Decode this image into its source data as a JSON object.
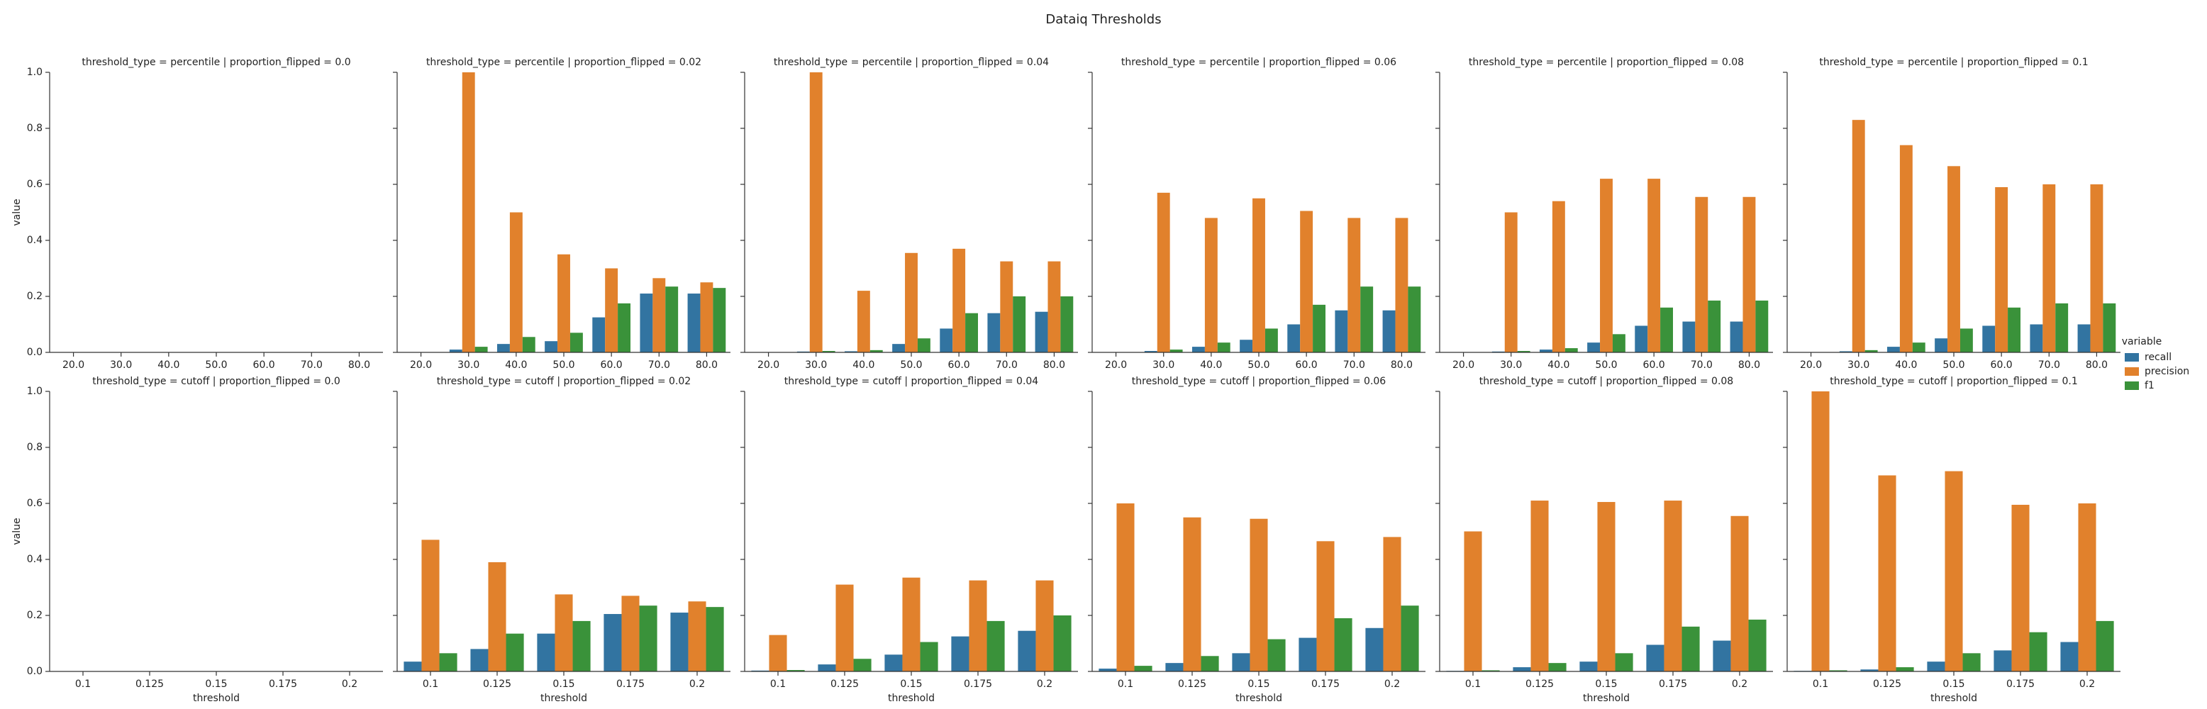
{
  "title": "Dataiq Thresholds",
  "legend_title": "variable",
  "ylim": [
    0,
    1
  ],
  "yticks": [
    {
      "value": 0,
      "label": "0.0"
    },
    0.2,
    0.4,
    0.6,
    0.8,
    {
      "value": 1,
      "label": "1.0"
    }
  ],
  "chart_data": [
    {
      "type": "bar",
      "title": "threshold_type = percentile | proportion_flipped = 0.0",
      "ylabel": "value",
      "categories": [
        "20.0",
        "30.0",
        "40.0",
        "50.0",
        "60.0",
        "70.0",
        "80.0"
      ],
      "series": [
        {
          "name": "recall",
          "color": "#3274a1",
          "values": [
            0,
            0,
            0,
            0,
            0,
            0,
            0
          ]
        },
        {
          "name": "precision",
          "color": "#e1812c",
          "values": [
            0,
            0,
            0,
            0,
            0,
            0,
            0
          ]
        },
        {
          "name": "f1",
          "color": "#3a923a",
          "values": [
            0,
            0,
            0,
            0,
            0,
            0,
            0
          ]
        }
      ]
    },
    {
      "type": "bar",
      "title": "threshold_type = percentile | proportion_flipped = 0.02",
      "categories": [
        "20.0",
        "30.0",
        "40.0",
        "50.0",
        "60.0",
        "70.0",
        "80.0"
      ],
      "series": [
        {
          "name": "recall",
          "color": "#3274a1",
          "values": [
            0,
            0.01,
            0.03,
            0.04,
            0.125,
            0.21,
            0.21
          ]
        },
        {
          "name": "precision",
          "color": "#e1812c",
          "values": [
            0,
            1.0,
            0.5,
            0.35,
            0.3,
            0.265,
            0.25
          ]
        },
        {
          "name": "f1",
          "color": "#3a923a",
          "values": [
            0,
            0.02,
            0.055,
            0.07,
            0.175,
            0.235,
            0.23
          ]
        }
      ]
    },
    {
      "type": "bar",
      "title": "threshold_type = percentile | proportion_flipped = 0.04",
      "categories": [
        "20.0",
        "30.0",
        "40.0",
        "50.0",
        "60.0",
        "70.0",
        "80.0"
      ],
      "series": [
        {
          "name": "recall",
          "color": "#3274a1",
          "values": [
            0,
            0.003,
            0.004,
            0.03,
            0.085,
            0.14,
            0.145
          ]
        },
        {
          "name": "precision",
          "color": "#e1812c",
          "values": [
            0,
            1.0,
            0.22,
            0.355,
            0.37,
            0.325,
            0.325
          ]
        },
        {
          "name": "f1",
          "color": "#3a923a",
          "values": [
            0,
            0.005,
            0.008,
            0.05,
            0.14,
            0.2,
            0.2
          ]
        }
      ]
    },
    {
      "type": "bar",
      "title": "threshold_type = percentile | proportion_flipped = 0.06",
      "categories": [
        "20.0",
        "30.0",
        "40.0",
        "50.0",
        "60.0",
        "70.0",
        "80.0"
      ],
      "series": [
        {
          "name": "recall",
          "color": "#3274a1",
          "values": [
            0,
            0.005,
            0.02,
            0.045,
            0.1,
            0.15,
            0.15
          ]
        },
        {
          "name": "precision",
          "color": "#e1812c",
          "values": [
            0,
            0.57,
            0.48,
            0.55,
            0.505,
            0.48,
            0.48
          ]
        },
        {
          "name": "f1",
          "color": "#3a923a",
          "values": [
            0,
            0.01,
            0.035,
            0.085,
            0.17,
            0.235,
            0.235
          ]
        }
      ]
    },
    {
      "type": "bar",
      "title": "threshold_type = percentile | proportion_flipped = 0.08",
      "categories": [
        "20.0",
        "30.0",
        "40.0",
        "50.0",
        "60.0",
        "70.0",
        "80.0"
      ],
      "series": [
        {
          "name": "recall",
          "color": "#3274a1",
          "values": [
            0,
            0.003,
            0.01,
            0.035,
            0.095,
            0.11,
            0.11
          ]
        },
        {
          "name": "precision",
          "color": "#e1812c",
          "values": [
            0,
            0.5,
            0.54,
            0.62,
            0.62,
            0.555,
            0.555
          ]
        },
        {
          "name": "f1",
          "color": "#3a923a",
          "values": [
            0,
            0.005,
            0.015,
            0.065,
            0.16,
            0.185,
            0.185
          ]
        }
      ]
    },
    {
      "type": "bar",
      "title": "threshold_type = percentile | proportion_flipped = 0.1",
      "categories": [
        "20.0",
        "30.0",
        "40.0",
        "50.0",
        "60.0",
        "70.0",
        "80.0"
      ],
      "series": [
        {
          "name": "recall",
          "color": "#3274a1",
          "values": [
            0,
            0.004,
            0.02,
            0.05,
            0.095,
            0.1,
            0.1
          ]
        },
        {
          "name": "precision",
          "color": "#e1812c",
          "values": [
            0,
            0.83,
            0.74,
            0.665,
            0.59,
            0.6,
            0.6
          ]
        },
        {
          "name": "f1",
          "color": "#3a923a",
          "values": [
            0,
            0.008,
            0.035,
            0.085,
            0.16,
            0.175,
            0.175
          ]
        }
      ]
    },
    {
      "type": "bar",
      "title": "threshold_type = cutoff | proportion_flipped = 0.0",
      "ylabel": "value",
      "xlabel": "threshold",
      "categories": [
        "0.1",
        "0.125",
        "0.15",
        "0.175",
        "0.2"
      ],
      "series": [
        {
          "name": "recall",
          "color": "#3274a1",
          "values": [
            0,
            0,
            0,
            0,
            0
          ]
        },
        {
          "name": "precision",
          "color": "#e1812c",
          "values": [
            0,
            0,
            0,
            0,
            0
          ]
        },
        {
          "name": "f1",
          "color": "#3a923a",
          "values": [
            0,
            0,
            0,
            0,
            0
          ]
        }
      ]
    },
    {
      "type": "bar",
      "title": "threshold_type = cutoff | proportion_flipped = 0.02",
      "xlabel": "threshold",
      "categories": [
        "0.1",
        "0.125",
        "0.15",
        "0.175",
        "0.2"
      ],
      "series": [
        {
          "name": "recall",
          "color": "#3274a1",
          "values": [
            0.035,
            0.08,
            0.135,
            0.205,
            0.21
          ]
        },
        {
          "name": "precision",
          "color": "#e1812c",
          "values": [
            0.47,
            0.39,
            0.275,
            0.27,
            0.25
          ]
        },
        {
          "name": "f1",
          "color": "#3a923a",
          "values": [
            0.065,
            0.135,
            0.18,
            0.235,
            0.23
          ]
        }
      ]
    },
    {
      "type": "bar",
      "title": "threshold_type = cutoff | proportion_flipped = 0.04",
      "xlabel": "threshold",
      "categories": [
        "0.1",
        "0.125",
        "0.15",
        "0.175",
        "0.2"
      ],
      "series": [
        {
          "name": "recall",
          "color": "#3274a1",
          "values": [
            0.003,
            0.025,
            0.06,
            0.125,
            0.145
          ]
        },
        {
          "name": "precision",
          "color": "#e1812c",
          "values": [
            0.13,
            0.31,
            0.335,
            0.325,
            0.325
          ]
        },
        {
          "name": "f1",
          "color": "#3a923a",
          "values": [
            0.005,
            0.045,
            0.105,
            0.18,
            0.2
          ]
        }
      ]
    },
    {
      "type": "bar",
      "title": "threshold_type = cutoff | proportion_flipped = 0.06",
      "xlabel": "threshold",
      "categories": [
        "0.1",
        "0.125",
        "0.15",
        "0.175",
        "0.2"
      ],
      "series": [
        {
          "name": "recall",
          "color": "#3274a1",
          "values": [
            0.01,
            0.03,
            0.065,
            0.12,
            0.155
          ]
        },
        {
          "name": "precision",
          "color": "#e1812c",
          "values": [
            0.6,
            0.55,
            0.545,
            0.465,
            0.48
          ]
        },
        {
          "name": "f1",
          "color": "#3a923a",
          "values": [
            0.02,
            0.055,
            0.115,
            0.19,
            0.235
          ]
        }
      ]
    },
    {
      "type": "bar",
      "title": "threshold_type = cutoff | proportion_flipped = 0.08",
      "xlabel": "threshold",
      "categories": [
        "0.1",
        "0.125",
        "0.15",
        "0.175",
        "0.2"
      ],
      "series": [
        {
          "name": "recall",
          "color": "#3274a1",
          "values": [
            0.002,
            0.015,
            0.035,
            0.095,
            0.11
          ]
        },
        {
          "name": "precision",
          "color": "#e1812c",
          "values": [
            0.5,
            0.61,
            0.605,
            0.61,
            0.555
          ]
        },
        {
          "name": "f1",
          "color": "#3a923a",
          "values": [
            0.004,
            0.03,
            0.065,
            0.16,
            0.185
          ]
        }
      ]
    },
    {
      "type": "bar",
      "title": "threshold_type = cutoff | proportion_flipped = 0.1",
      "xlabel": "threshold",
      "categories": [
        "0.1",
        "0.125",
        "0.15",
        "0.175",
        "0.2"
      ],
      "series": [
        {
          "name": "recall",
          "color": "#3274a1",
          "values": [
            0.002,
            0.007,
            0.035,
            0.075,
            0.105
          ]
        },
        {
          "name": "precision",
          "color": "#e1812c",
          "values": [
            1.0,
            0.7,
            0.715,
            0.595,
            0.6
          ]
        },
        {
          "name": "f1",
          "color": "#3a923a",
          "values": [
            0.004,
            0.015,
            0.065,
            0.14,
            0.18
          ]
        }
      ]
    }
  ]
}
